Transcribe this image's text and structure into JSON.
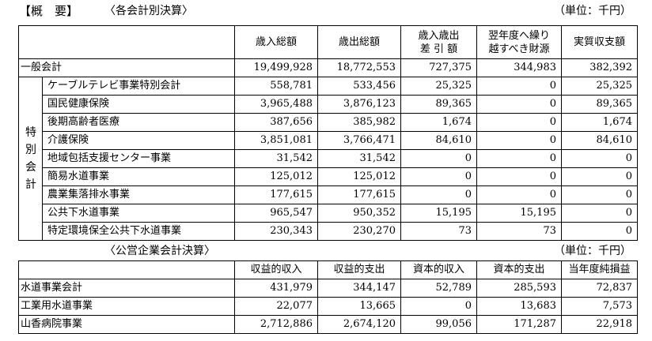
{
  "heading": {
    "title": "【概　要】",
    "section1": "〈各会計別決算〉",
    "unit1": "（単位：千円）",
    "section2": "〈公営企業会計決算〉",
    "unit2": "（単位：千円）"
  },
  "table1": {
    "columns": [
      "歳入総額",
      "歳出総額",
      "歳入歳出\n差 引 額",
      "翌年度へ繰り\n越すべき財源",
      "実質収支額"
    ],
    "general": {
      "name": "一般会計",
      "values": [
        "19,499,928",
        "18,772,553",
        "727,375",
        "344,983",
        "382,392"
      ]
    },
    "special_label": "特別会計",
    "special_rows": [
      {
        "name": "ケーブルテレビ事業特別会計",
        "values": [
          "558,781",
          "533,456",
          "25,325",
          "0",
          "25,325"
        ]
      },
      {
        "name": "国民健康保険",
        "values": [
          "3,965,488",
          "3,876,123",
          "89,365",
          "0",
          "89,365"
        ]
      },
      {
        "name": "後期高齢者医療",
        "values": [
          "387,656",
          "385,982",
          "1,674",
          "0",
          "1,674"
        ]
      },
      {
        "name": "介護保険",
        "values": [
          "3,851,081",
          "3,766,471",
          "84,610",
          "0",
          "84,610"
        ]
      },
      {
        "name": "地域包括支援センター事業",
        "values": [
          "31,542",
          "31,542",
          "0",
          "0",
          "0"
        ]
      },
      {
        "name": "簡易水道事業",
        "values": [
          "125,012",
          "125,012",
          "0",
          "0",
          "0"
        ]
      },
      {
        "name": "農業集落排水事業",
        "values": [
          "177,615",
          "177,615",
          "0",
          "0",
          "0"
        ]
      },
      {
        "name": "公共下水道事業",
        "values": [
          "965,547",
          "950,352",
          "15,195",
          "15,195",
          "0"
        ]
      },
      {
        "name": "特定環境保全公共下水道事業",
        "values": [
          "230,343",
          "230,270",
          "73",
          "73",
          "0"
        ]
      }
    ]
  },
  "table2": {
    "columns": [
      "収益的収入",
      "収益的支出",
      "資本的収入",
      "資本的支出",
      "当年度純損益"
    ],
    "rows": [
      {
        "name": "水道事業会計",
        "values": [
          "431,979",
          "344,147",
          "52,789",
          "285,593",
          "72,837"
        ]
      },
      {
        "name": "工業用水道事業",
        "values": [
          "22,077",
          "13,665",
          "0",
          "13,683",
          "7,573"
        ]
      },
      {
        "name": "山香病院事業",
        "values": [
          "2,712,886",
          "2,674,120",
          "99,056",
          "171,287",
          "22,918"
        ]
      }
    ]
  }
}
